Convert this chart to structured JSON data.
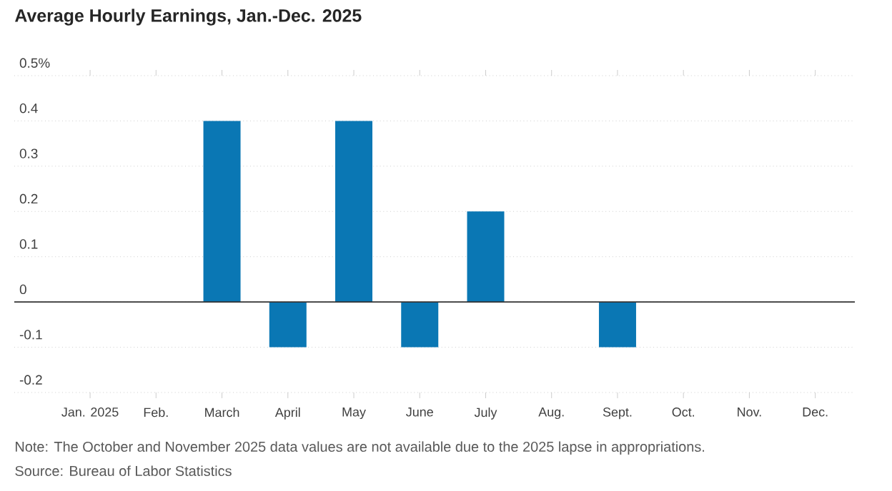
{
  "chart_data": {
    "type": "bar",
    "title": "Average Hourly Earnings, Jan.-Dec. 2025",
    "categories": [
      "Jan. 2025",
      "Feb.",
      "March",
      "April",
      "May",
      "June",
      "July",
      "Aug.",
      "Sept.",
      "Oct.",
      "Nov.",
      "Dec."
    ],
    "values": [
      0,
      0,
      0.4,
      -0.1,
      0.4,
      -0.1,
      0.2,
      0,
      -0.1,
      null,
      null,
      0
    ],
    "color": "#0a77b4",
    "ylim": [
      -0.2,
      0.5
    ],
    "yticks": [
      -0.2,
      -0.1,
      0,
      0.1,
      0.2,
      0.3,
      0.4,
      {
        "value": 0.5,
        "label": "0.5%"
      }
    ],
    "grid": "y",
    "annotations": [
      "Note: The October and November 2025 data values are not available due to the 2025 lapse in appropriations.",
      "Source: Bureau of Labor Statistics"
    ]
  }
}
